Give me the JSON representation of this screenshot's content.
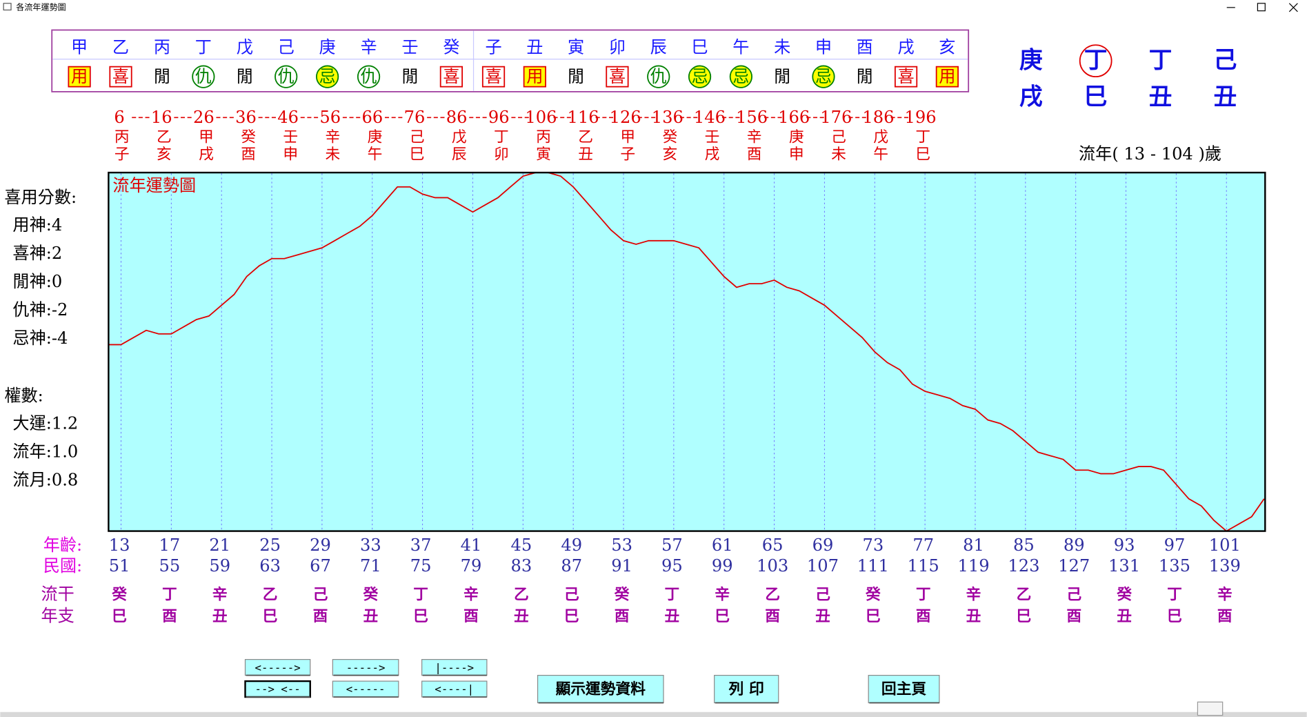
{
  "window_title": "各流年運勢圖",
  "elements": {
    "stems": [
      "甲",
      "乙",
      "丙",
      "丁",
      "戊",
      "己",
      "庚",
      "辛",
      "壬",
      "癸"
    ],
    "stem_gods": [
      "用",
      "喜",
      "閒",
      "仇",
      "閒",
      "仇",
      "忌",
      "仇",
      "閒",
      "喜"
    ],
    "stem_styles": [
      "yellow-box",
      "red-box",
      "plain",
      "green-circle",
      "plain",
      "green-circle",
      "yellow-circle",
      "green-circle",
      "plain",
      "red-box"
    ],
    "branches": [
      "子",
      "丑",
      "寅",
      "卯",
      "辰",
      "巳",
      "午",
      "未",
      "申",
      "酉",
      "戌",
      "亥"
    ],
    "branch_gods": [
      "喜",
      "用",
      "閒",
      "喜",
      "仇",
      "忌",
      "忌",
      "閒",
      "忌",
      "閒",
      "喜",
      "用"
    ],
    "branch_styles": [
      "red-box",
      "yellow-box",
      "plain",
      "red-box",
      "green-circle",
      "yellow-circle",
      "yellow-circle",
      "plain",
      "yellow-circle",
      "plain",
      "red-box",
      "yellow-box"
    ]
  },
  "pillars": {
    "stems": [
      "庚",
      "丁",
      "丁",
      "己"
    ],
    "branches": [
      "戌",
      "巳",
      "丑",
      "丑"
    ],
    "stem_circled": [
      false,
      true,
      false,
      false
    ]
  },
  "luck_periods": {
    "ages": [
      6,
      16,
      26,
      36,
      46,
      56,
      66,
      76,
      86,
      96,
      106,
      116,
      126,
      136,
      146,
      156,
      166,
      176,
      186,
      196
    ],
    "stems": [
      "丙",
      "乙",
      "甲",
      "癸",
      "壬",
      "辛",
      "庚",
      "己",
      "戊",
      "丁",
      "丙",
      "乙",
      "甲",
      "癸",
      "壬",
      "辛",
      "庚",
      "己",
      "戊",
      "丁"
    ],
    "branches": [
      "子",
      "亥",
      "戌",
      "酉",
      "申",
      "未",
      "午",
      "巳",
      "辰",
      "卯",
      "寅",
      "丑",
      "子",
      "亥",
      "戌",
      "酉",
      "申",
      "未",
      "午",
      "巳"
    ]
  },
  "range_label": "流年( 13 - 104 )歲",
  "scores": {
    "title": "喜用分數:",
    "items": [
      "用神:4",
      "喜神:2",
      "閒神:0",
      "仇神:-2",
      "忌神:-4"
    ]
  },
  "weights": {
    "title": "權數:",
    "items": [
      "大運:1.2",
      "流年:1.0",
      "流月:0.8"
    ]
  },
  "chart": {
    "title": "流年運勢圖",
    "curve": {
      "x": [
        12,
        13,
        14,
        15,
        16,
        17,
        18,
        19,
        20,
        21,
        22,
        23,
        24,
        25,
        26,
        27,
        28,
        29,
        30,
        31,
        32,
        33,
        34,
        35,
        36,
        37,
        38,
        39,
        40,
        41,
        42,
        43,
        44,
        45,
        46,
        47,
        48,
        49,
        50,
        51,
        52,
        53,
        54,
        55,
        56,
        57,
        58,
        59,
        60,
        61,
        62,
        63,
        64,
        65,
        66,
        67,
        68,
        69,
        70,
        71,
        72,
        73,
        74,
        75,
        76,
        77,
        78,
        79,
        80,
        81,
        82,
        83,
        84,
        85,
        86,
        87,
        88,
        89,
        90,
        91,
        92,
        93,
        94,
        95,
        96,
        97,
        98,
        99,
        100,
        101,
        102,
        103,
        104
      ],
      "values": [
        52,
        52,
        54,
        56,
        55,
        55,
        57,
        59,
        60,
        63,
        66,
        71,
        74,
        76,
        76,
        77,
        78,
        79,
        81,
        83,
        85,
        88,
        92,
        96,
        96,
        94,
        93,
        93,
        91,
        89,
        91,
        93,
        96,
        99,
        100,
        100,
        99,
        96,
        92,
        88,
        84,
        81,
        80,
        81,
        81,
        81,
        80,
        79,
        75,
        71,
        68,
        69,
        69,
        70,
        68,
        67,
        65,
        63,
        60,
        57,
        54,
        50,
        47,
        45,
        41,
        39,
        38,
        37,
        35,
        34,
        31,
        30,
        28,
        25,
        22,
        21,
        20,
        17,
        17,
        16,
        16,
        17,
        18,
        18,
        17,
        13,
        9,
        7,
        3,
        0,
        2,
        4,
        9
      ],
      "color": "#e00000"
    }
  },
  "footer": {
    "age_label": "年齡:",
    "roc_label": "民國:",
    "ganzhi_labels": [
      "流干",
      "年支"
    ],
    "ages": [
      13,
      17,
      21,
      25,
      29,
      33,
      37,
      41,
      45,
      49,
      53,
      57,
      61,
      65,
      69,
      73,
      77,
      81,
      85,
      89,
      93,
      97,
      101
    ],
    "roc_years": [
      51,
      55,
      59,
      63,
      67,
      71,
      75,
      79,
      83,
      87,
      91,
      95,
      99,
      103,
      107,
      111,
      115,
      119,
      123,
      127,
      131,
      135,
      139
    ],
    "stems": [
      "癸",
      "丁",
      "辛",
      "乙",
      "己",
      "癸",
      "丁",
      "辛",
      "乙",
      "己",
      "癸",
      "丁",
      "辛",
      "乙",
      "己",
      "癸",
      "丁",
      "辛",
      "乙",
      "己",
      "癸",
      "丁",
      "辛"
    ],
    "branches": [
      "巳",
      "酉",
      "丑",
      "巳",
      "酉",
      "丑",
      "巳",
      "酉",
      "丑",
      "巳",
      "酉",
      "丑",
      "巳",
      "酉",
      "丑",
      "巳",
      "酉",
      "丑",
      "巳",
      "酉",
      "丑",
      "巳",
      "酉"
    ]
  },
  "buttons": [
    "<----->",
    "----->",
    "|---->",
    "--> <--",
    "<-----",
    "<----|",
    "顯示運勢資料",
    "列 印",
    "回主頁"
  ]
}
